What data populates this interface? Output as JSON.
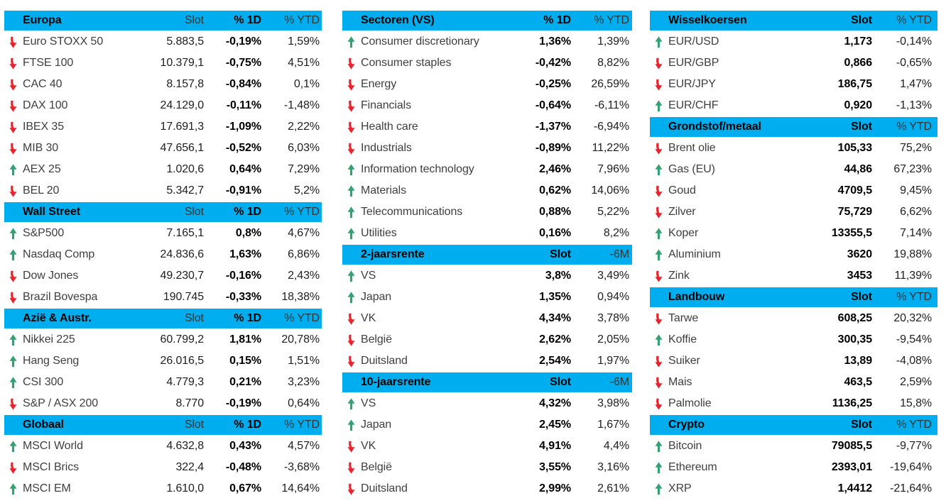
{
  "colors": {
    "header_bg": "#00AEEF",
    "up_arrow": "#35A073",
    "down_arrow": "#E8232B",
    "bold_text": "#000000",
    "body_text": "#3F3F3E"
  },
  "icons": {
    "up": "arrow-up-icon",
    "down": "arrow-down-icon"
  },
  "columns": [
    {
      "tables": [
        {
          "title": "Europa",
          "headers": [
            "Slot",
            "% 1D",
            "% YTD"
          ],
          "rows": [
            {
              "dir": "down",
              "name": "Euro STOXX 50",
              "cells": [
                "5.883,5",
                "-0,19%",
                "1,59%"
              ]
            },
            {
              "dir": "down",
              "name": "FTSE 100",
              "cells": [
                "10.379,1",
                "-0,75%",
                "4,51%"
              ]
            },
            {
              "dir": "down",
              "name": "CAC 40",
              "cells": [
                "8.157,8",
                "-0,84%",
                "0,1%"
              ]
            },
            {
              "dir": "down",
              "name": "DAX 100",
              "cells": [
                "24.129,0",
                "-0,11%",
                "-1,48%"
              ]
            },
            {
              "dir": "down",
              "name": "IBEX 35",
              "cells": [
                "17.691,3",
                "-1,09%",
                "2,22%"
              ]
            },
            {
              "dir": "down",
              "name": "MIB 30",
              "cells": [
                "47.656,1",
                "-0,52%",
                "6,03%"
              ]
            },
            {
              "dir": "up",
              "name": "AEX 25",
              "cells": [
                "1.020,6",
                "0,64%",
                "7,29%"
              ]
            },
            {
              "dir": "down",
              "name": "BEL 20",
              "cells": [
                "5.342,7",
                "-0,91%",
                "5,2%"
              ]
            }
          ]
        },
        {
          "title": "Wall Street",
          "headers": [
            "Slot",
            "% 1D",
            "% YTD"
          ],
          "rows": [
            {
              "dir": "up",
              "name": "S&P500",
              "cells": [
                "7.165,1",
                "0,8%",
                "4,67%"
              ]
            },
            {
              "dir": "up",
              "name": "Nasdaq Comp",
              "cells": [
                "24.836,6",
                "1,63%",
                "6,86%"
              ]
            },
            {
              "dir": "down",
              "name": "Dow Jones",
              "cells": [
                "49.230,7",
                "-0,16%",
                "2,43%"
              ]
            },
            {
              "dir": "down",
              "name": "Brazil Bovespa",
              "cells": [
                "190.745",
                "-0,33%",
                "18,38%"
              ]
            }
          ]
        },
        {
          "title": "Azië & Austr.",
          "headers": [
            "Slot",
            "% 1D",
            "% YTD"
          ],
          "rows": [
            {
              "dir": "up",
              "name": "Nikkei 225",
              "cells": [
                "60.799,2",
                "1,81%",
                "20,78%"
              ]
            },
            {
              "dir": "up",
              "name": "Hang Seng",
              "cells": [
                "26.016,5",
                "0,15%",
                "1,51%"
              ]
            },
            {
              "dir": "up",
              "name": "CSI 300",
              "cells": [
                "4.779,3",
                "0,21%",
                "3,23%"
              ]
            },
            {
              "dir": "down",
              "name": "S&P / ASX 200",
              "cells": [
                "8.770",
                "-0,19%",
                "0,64%"
              ]
            }
          ]
        },
        {
          "title": "Globaal",
          "headers": [
            "Slot",
            "% 1D",
            "% YTD"
          ],
          "rows": [
            {
              "dir": "up",
              "name": "MSCI World",
              "cells": [
                "4.632,8",
                "0,43%",
                "4,57%"
              ]
            },
            {
              "dir": "down",
              "name": "MSCI Brics",
              "cells": [
                "322,4",
                "-0,48%",
                "-3,68%"
              ]
            },
            {
              "dir": "up",
              "name": "MSCI EM",
              "cells": [
                "1.610,0",
                "0,67%",
                "14,64%"
              ]
            }
          ]
        }
      ]
    },
    {
      "tables": [
        {
          "title": "Sectoren (VS)",
          "headers": [
            "% 1D",
            "% YTD"
          ],
          "rows": [
            {
              "dir": "up",
              "name": "Consumer discretionary",
              "cells": [
                "1,36%",
                "1,39%"
              ]
            },
            {
              "dir": "down",
              "name": "Consumer staples",
              "cells": [
                "-0,42%",
                "8,82%"
              ]
            },
            {
              "dir": "down",
              "name": "Energy",
              "cells": [
                "-0,25%",
                "26,59%"
              ]
            },
            {
              "dir": "down",
              "name": "Financials",
              "cells": [
                "-0,64%",
                "-6,11%"
              ]
            },
            {
              "dir": "down",
              "name": "Health care",
              "cells": [
                "-1,37%",
                "-6,94%"
              ]
            },
            {
              "dir": "down",
              "name": "Industrials",
              "cells": [
                "-0,89%",
                "11,22%"
              ]
            },
            {
              "dir": "up",
              "name": "Information technology",
              "cells": [
                "2,46%",
                "7,96%"
              ]
            },
            {
              "dir": "up",
              "name": "Materials",
              "cells": [
                "0,62%",
                "14,06%"
              ]
            },
            {
              "dir": "up",
              "name": "Telecommunications",
              "cells": [
                "0,88%",
                "5,22%"
              ]
            },
            {
              "dir": "up",
              "name": "Utilities",
              "cells": [
                "0,16%",
                "8,2%"
              ]
            }
          ]
        },
        {
          "title": "2-jaarsrente",
          "headers": [
            "Slot",
            "-6M"
          ],
          "rows": [
            {
              "dir": "up",
              "name": "VS",
              "cells": [
                "3,8%",
                "3,49%"
              ]
            },
            {
              "dir": "up",
              "name": "Japan",
              "cells": [
                "1,35%",
                "0,94%"
              ]
            },
            {
              "dir": "down",
              "name": "VK",
              "cells": [
                "4,34%",
                "3,78%"
              ]
            },
            {
              "dir": "down",
              "name": "België",
              "cells": [
                "2,62%",
                "2,05%"
              ]
            },
            {
              "dir": "down",
              "name": "Duitsland",
              "cells": [
                "2,54%",
                "1,97%"
              ]
            }
          ]
        },
        {
          "title": "10-jaarsrente",
          "headers": [
            "Slot",
            "-6M"
          ],
          "rows": [
            {
              "dir": "up",
              "name": "VS",
              "cells": [
                "4,32%",
                "3,98%"
              ]
            },
            {
              "dir": "up",
              "name": "Japan",
              "cells": [
                "2,45%",
                "1,67%"
              ]
            },
            {
              "dir": "down",
              "name": "VK",
              "cells": [
                "4,91%",
                "4,4%"
              ]
            },
            {
              "dir": "down",
              "name": "België",
              "cells": [
                "3,55%",
                "3,16%"
              ]
            },
            {
              "dir": "down",
              "name": "Duitsland",
              "cells": [
                "2,99%",
                "2,61%"
              ]
            }
          ]
        }
      ]
    },
    {
      "tables": [
        {
          "title": "Wisselkoersen",
          "headers": [
            "Slot",
            "% YTD"
          ],
          "rows": [
            {
              "dir": "up",
              "name": "EUR/USD",
              "cells": [
                "1,173",
                "-0,14%"
              ]
            },
            {
              "dir": "down",
              "name": "EUR/GBP",
              "cells": [
                "0,866",
                "-0,65%"
              ]
            },
            {
              "dir": "down",
              "name": "EUR/JPY",
              "cells": [
                "186,75",
                "1,47%"
              ]
            },
            {
              "dir": "up",
              "name": "EUR/CHF",
              "cells": [
                "0,920",
                "-1,13%"
              ]
            }
          ]
        },
        {
          "title": "Grondstof/metaal",
          "headers": [
            "Slot",
            "% YTD"
          ],
          "rows": [
            {
              "dir": "down",
              "name": "Brent olie",
              "cells": [
                "105,33",
                "75,2%"
              ]
            },
            {
              "dir": "up",
              "name": "Gas (EU)",
              "cells": [
                "44,86",
                "67,23%"
              ]
            },
            {
              "dir": "down",
              "name": "Goud",
              "cells": [
                "4709,5",
                "9,45%"
              ]
            },
            {
              "dir": "down",
              "name": "Zilver",
              "cells": [
                "75,729",
                "6,62%"
              ]
            },
            {
              "dir": "up",
              "name": "Koper",
              "cells": [
                "13355,5",
                "7,14%"
              ]
            },
            {
              "dir": "up",
              "name": "Aluminium",
              "cells": [
                "3620",
                "19,88%"
              ]
            },
            {
              "dir": "down",
              "name": "Zink",
              "cells": [
                "3453",
                "11,39%"
              ]
            }
          ]
        },
        {
          "title": "Landbouw",
          "headers": [
            "Slot",
            "% YTD"
          ],
          "rows": [
            {
              "dir": "down",
              "name": "Tarwe",
              "cells": [
                "608,25",
                "20,32%"
              ]
            },
            {
              "dir": "up",
              "name": "Koffie",
              "cells": [
                "300,35",
                "-9,54%"
              ]
            },
            {
              "dir": "down",
              "name": "Suiker",
              "cells": [
                "13,89",
                "-4,08%"
              ]
            },
            {
              "dir": "down",
              "name": "Mais",
              "cells": [
                "463,5",
                "2,59%"
              ]
            },
            {
              "dir": "down",
              "name": "Palmolie",
              "cells": [
                "1136,25",
                "15,8%"
              ]
            }
          ]
        },
        {
          "title": "Crypto",
          "headers": [
            "Slot",
            "% YTD"
          ],
          "rows": [
            {
              "dir": "up",
              "name": "Bitcoin",
              "cells": [
                "79085,5",
                "-9,77%"
              ]
            },
            {
              "dir": "up",
              "name": "Ethereum",
              "cells": [
                "2393,01",
                "-19,64%"
              ]
            },
            {
              "dir": "up",
              "name": "XRP",
              "cells": [
                "1,4412",
                "-21,64%"
              ]
            }
          ]
        }
      ]
    }
  ]
}
